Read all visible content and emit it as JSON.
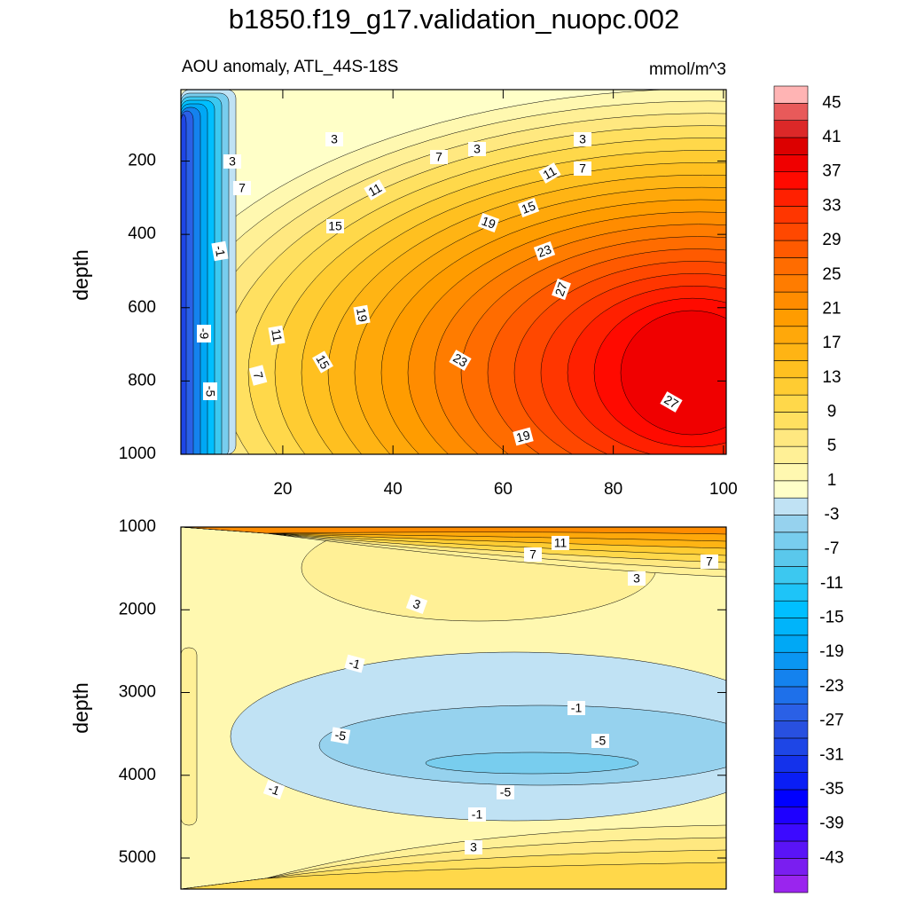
{
  "title": "b1850.f19_g17.validation_nuopc.002",
  "chart_data": [
    {
      "type": "contour",
      "subtitle": "AOU anomaly, ATL_44S-18S",
      "units": "mmol/m^3",
      "ylabel": "depth",
      "xlim": [
        1.5,
        100.5
      ],
      "xticks": [
        20,
        40,
        60,
        80,
        100
      ],
      "ylim": [
        5,
        1000
      ],
      "yticks": [
        200,
        400,
        600,
        800,
        1000
      ],
      "contour_labels": [
        3,
        3,
        3,
        3,
        7,
        7,
        7,
        11,
        11,
        15,
        19,
        15,
        -1,
        23,
        27,
        19,
        -9,
        11,
        15,
        23,
        7,
        -5,
        27,
        19
      ]
    },
    {
      "type": "contour",
      "ylabel": "depth",
      "xlim": [
        1.5,
        100.5
      ],
      "ylim": [
        1000,
        5375
      ],
      "yticks": [
        1000,
        2000,
        3000,
        4000,
        5000
      ],
      "contour_labels": [
        11,
        7,
        7,
        3,
        3,
        -1,
        -1,
        -5,
        -5,
        -5,
        -1,
        -1,
        3
      ]
    },
    {
      "type": "colorbar",
      "levels": [
        -45,
        -43,
        -41,
        -39,
        -37,
        -35,
        -33,
        -31,
        -29,
        -27,
        -25,
        -23,
        -21,
        -19,
        -17,
        -15,
        -13,
        -11,
        -9,
        -7,
        -5,
        -3,
        -1,
        1,
        3,
        5,
        7,
        9,
        11,
        13,
        15,
        17,
        19,
        21,
        23,
        25,
        27,
        29,
        31,
        33,
        35,
        37,
        39,
        41,
        43,
        45
      ],
      "colors": [
        "#9a25ee",
        "#7a1ef0",
        "#5a14f7",
        "#3c0aff",
        "#1e00ff",
        "#0000ff",
        "#0a1ef5",
        "#1432eb",
        "#1e46e6",
        "#2850e0",
        "#2a60e6",
        "#1e70ea",
        "#1482ee",
        "#0a96f2",
        "#00a8f5",
        "#00b4fa",
        "#00bfff",
        "#1ec4f8",
        "#3cc8f0",
        "#5ac8ec",
        "#78cdee",
        "#96d2ee",
        "#c0e2f4",
        "#ffffc8",
        "#fff8b0",
        "#fff096",
        "#ffe880",
        "#ffe060",
        "#ffd84a",
        "#ffcc32",
        "#ffc020",
        "#ffb414",
        "#ffa80a",
        "#ff9c00",
        "#ff8c00",
        "#ff7c00",
        "#ff6c00",
        "#ff5a00",
        "#ff4800",
        "#ff3600",
        "#ff2000",
        "#ff0a00",
        "#f00000",
        "#dc0000",
        "#dc2828",
        "#e85a5a",
        "#ffb4b4"
      ]
    }
  ]
}
